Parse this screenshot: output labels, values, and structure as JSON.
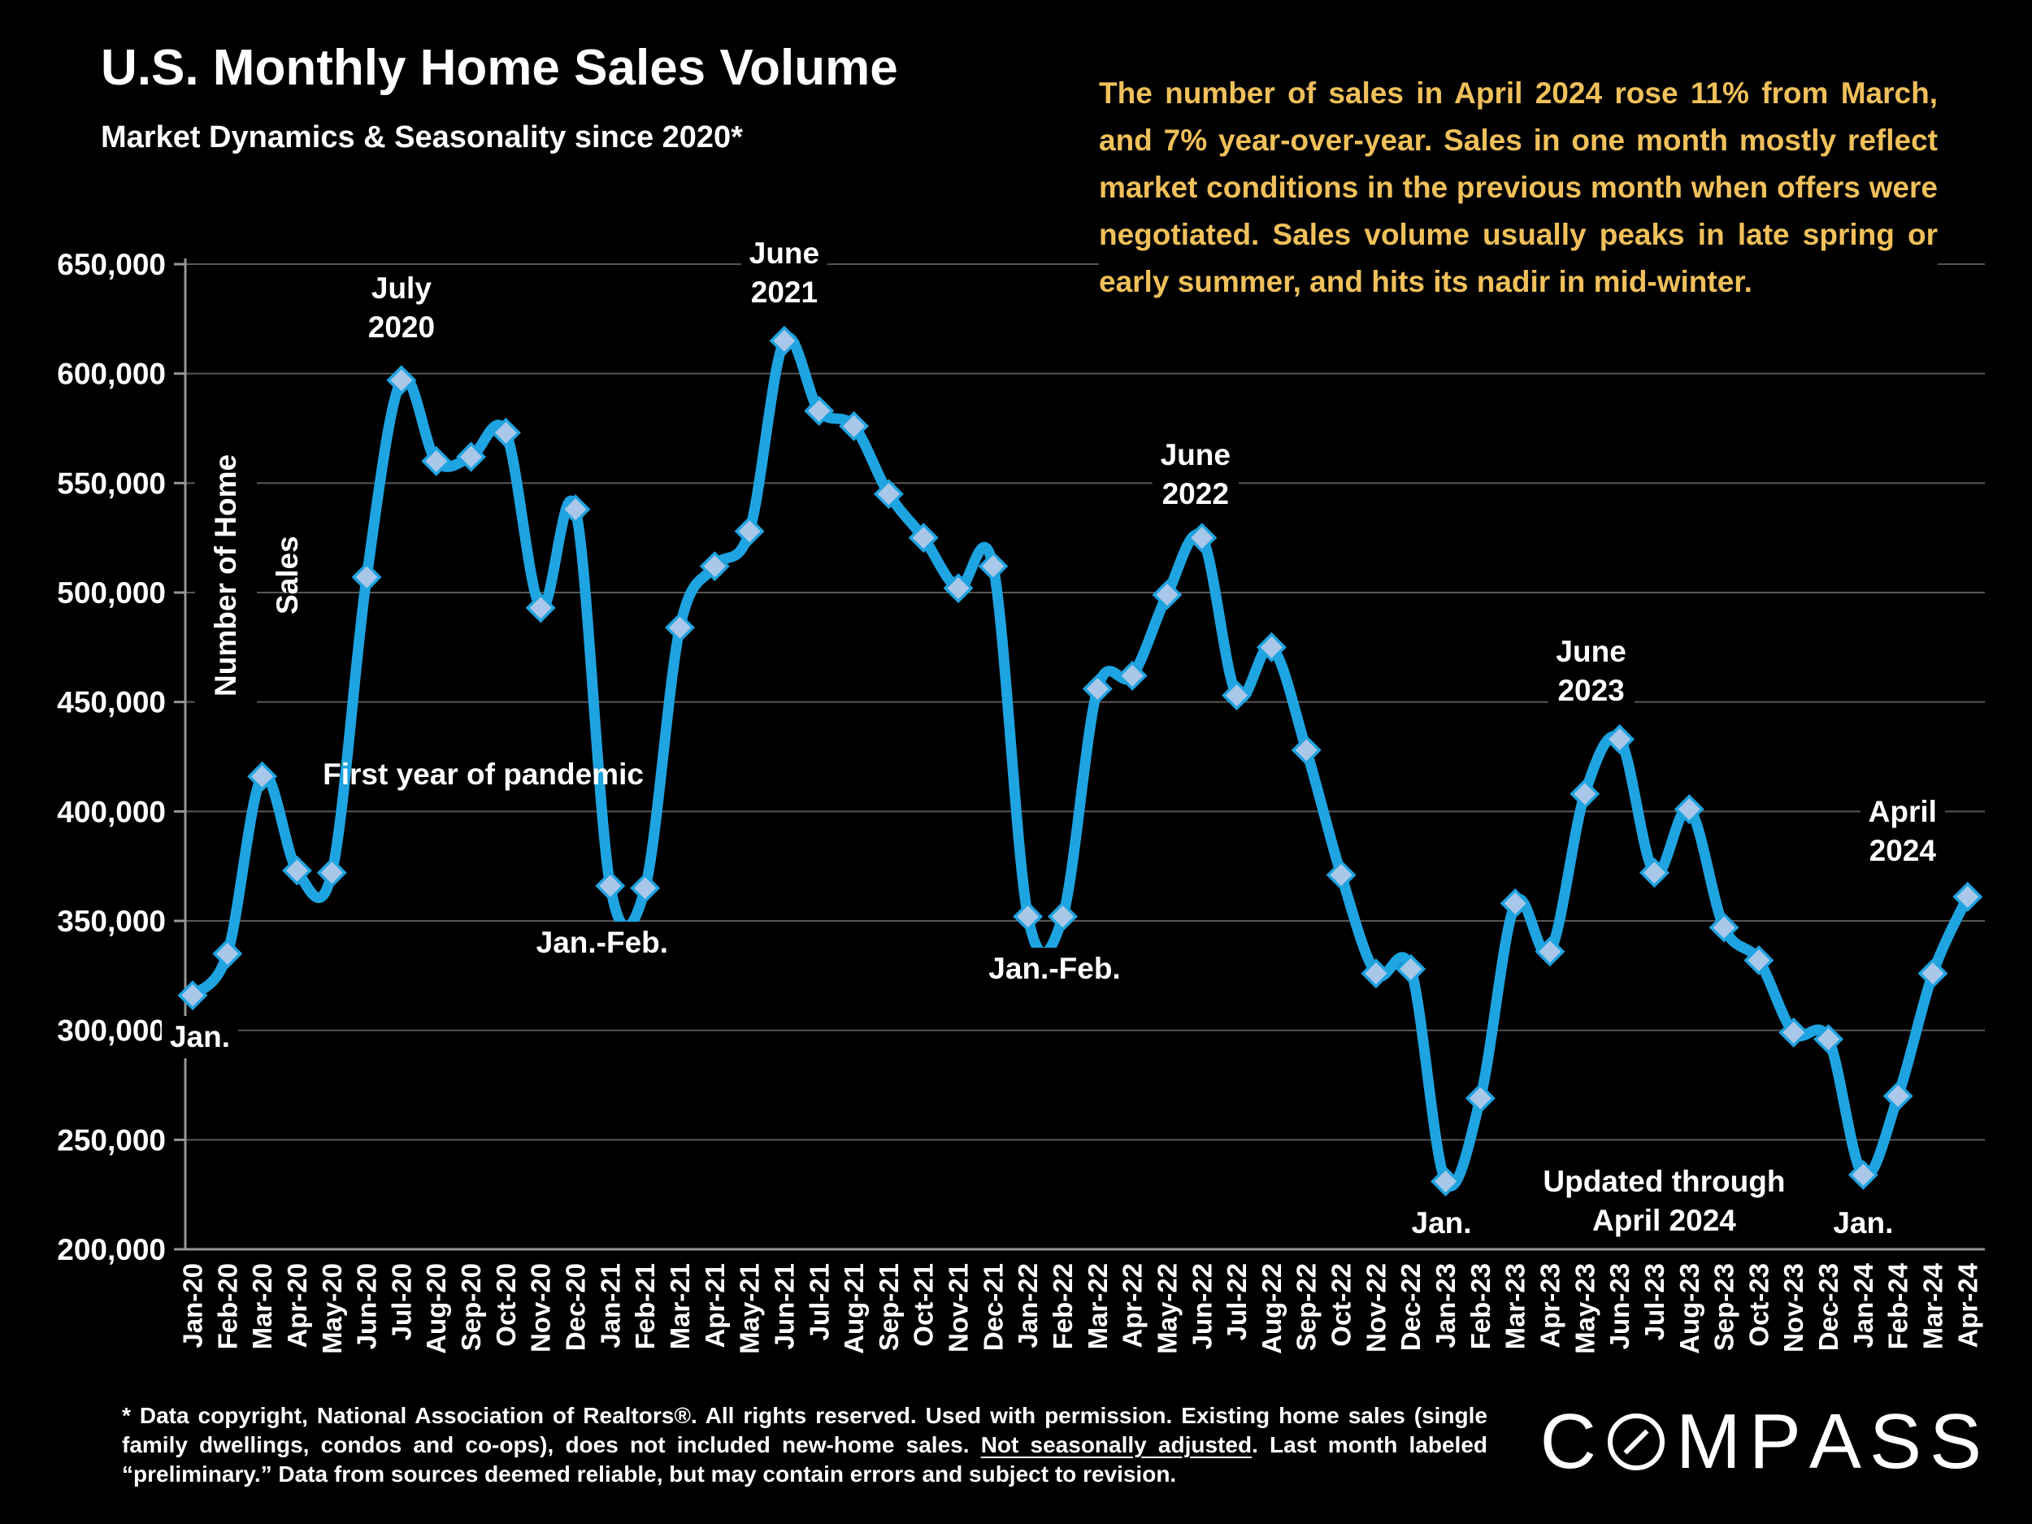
{
  "header": {
    "title": "U.S. Monthly Home Sales Volume",
    "subtitle": "Market Dynamics & Seasonality since 2020*"
  },
  "commentary": {
    "text": "The number of sales in April 2024 rose 11% from March, and 7% year-over-year. Sales in one month mostly reflect market conditions in the previous month when offers were negotiated. Sales volume usually peaks in late spring or early summer, and hits its nadir in mid-winter.",
    "color": "#F0C05A"
  },
  "chart_data": {
    "type": "line",
    "title": "U.S. Monthly Home Sales Volume",
    "xlabel": "",
    "ylabel": "Number of Home Sales",
    "ylim": [
      200000,
      650000
    ],
    "ytick_step": 50000,
    "grid": true,
    "legend": false,
    "line_color": "#1EA4E1",
    "marker": {
      "shape": "diamond",
      "fill": "#A9C7E8",
      "stroke": "#1EA4E1"
    },
    "grid_color": "#565656",
    "axis_color": "#969696",
    "yticks": [
      {
        "value": 650000,
        "label": "650,000"
      },
      {
        "value": 600000,
        "label": "600,000"
      },
      {
        "value": 550000,
        "label": "550,000"
      },
      {
        "value": 500000,
        "label": "500,000"
      },
      {
        "value": 450000,
        "label": "450,000"
      },
      {
        "value": 400000,
        "label": "400,000"
      },
      {
        "value": 350000,
        "label": "350,000"
      },
      {
        "value": 300000,
        "label": "300,000"
      },
      {
        "value": 250000,
        "label": "250,000"
      },
      {
        "value": 200000,
        "label": "200,000"
      }
    ],
    "categories": [
      "Jan-20",
      "Feb-20",
      "Mar-20",
      "Apr-20",
      "May-20",
      "Jun-20",
      "Jul-20",
      "Aug-20",
      "Sep-20",
      "Oct-20",
      "Nov-20",
      "Dec-20",
      "Jan-21",
      "Feb-21",
      "Mar-21",
      "Apr-21",
      "May-21",
      "Jun-21",
      "Jul-21",
      "Aug-21",
      "Sep-21",
      "Oct-21",
      "Nov-21",
      "Dec-21",
      "Jan-22",
      "Feb-22",
      "Mar-22",
      "Apr-22",
      "May-22",
      "Jun-22",
      "Jul-22",
      "Aug-22",
      "Sep-22",
      "Oct-22",
      "Nov-22",
      "Dec-22",
      "Jan-23",
      "Feb-23",
      "Mar-23",
      "Apr-23",
      "May-23",
      "Jun-23",
      "Jul-23",
      "Aug-23",
      "Sep-23",
      "Oct-23",
      "Nov-23",
      "Dec-23",
      "Jan-24",
      "Feb-24",
      "Mar-24",
      "Apr-24"
    ],
    "values": [
      316000,
      335000,
      416000,
      373000,
      372000,
      507000,
      597000,
      560000,
      562000,
      573000,
      493000,
      538000,
      366000,
      365000,
      484000,
      512000,
      528000,
      615000,
      583000,
      576000,
      545000,
      525000,
      502000,
      512000,
      352000,
      352000,
      456000,
      462000,
      499000,
      525000,
      453000,
      475000,
      428000,
      371000,
      326000,
      328000,
      231000,
      269000,
      358000,
      336000,
      408000,
      433000,
      372000,
      401000,
      347000,
      332000,
      299000,
      296000,
      234000,
      270000,
      326000,
      361000
    ],
    "annotations": [
      {
        "id": "july-2020",
        "lines": [
          "July",
          "2020"
        ],
        "month": "Jul-20",
        "dx": 0,
        "value": 630000
      },
      {
        "id": "june-2021",
        "lines": [
          "June",
          "2021"
        ],
        "month": "Jun-21",
        "dx": 0,
        "value": 646000
      },
      {
        "id": "june-2022",
        "lines": [
          "June",
          "2022"
        ],
        "month": "Jun-22",
        "dx": -8,
        "value": 554000
      },
      {
        "id": "june-2023",
        "lines": [
          "June",
          "2023"
        ],
        "month": "Jun-23",
        "dx": -35,
        "value": 464000
      },
      {
        "id": "april-2024",
        "lines": [
          "April",
          "2024"
        ],
        "month": "Apr-24",
        "dx": -80,
        "value": 391000
      },
      {
        "id": "first-year-pandemic",
        "lines": [
          "First year of pandemic"
        ],
        "month": "Sep-20",
        "dx": 15,
        "value": 417000,
        "transparent": true
      },
      {
        "id": "jan-2020",
        "lines": [
          "Jan."
        ],
        "month": "Jan-20",
        "dx": 9,
        "value": 297000
      },
      {
        "id": "janfeb-2021",
        "lines": [
          "Jan.-Feb."
        ],
        "month": "Jan-21",
        "dx": -10,
        "value": 340000
      },
      {
        "id": "janfeb-2022",
        "lines": [
          "Jan.-Feb."
        ],
        "month": "Feb-22",
        "dx": -10,
        "value": 328000
      },
      {
        "id": "jan-2023",
        "lines": [
          "Jan."
        ],
        "month": "Jan-23",
        "dx": -5,
        "value": 212000
      },
      {
        "id": "jan-2024",
        "lines": [
          "Jan."
        ],
        "month": "Jan-24",
        "dx": 0,
        "value": 212000
      },
      {
        "id": "updated-through",
        "lines": [
          "Updated through",
          "April 2024"
        ],
        "month": "Jul-23",
        "dx": 12,
        "value": 222000
      }
    ]
  },
  "footer": {
    "note_pre": "* Data copyright, National Association of Realtors®. All rights reserved. Used with permission. Existing home sales (single family dwellings, condos and co-ops), does not included new-home sales. ",
    "note_underlined": "Not seasonally adjusted",
    "note_post": ". Last month labeled “preliminary.” Data from sources deemed reliable, but may contain errors and subject to revision.",
    "logo": "COMPASS"
  }
}
